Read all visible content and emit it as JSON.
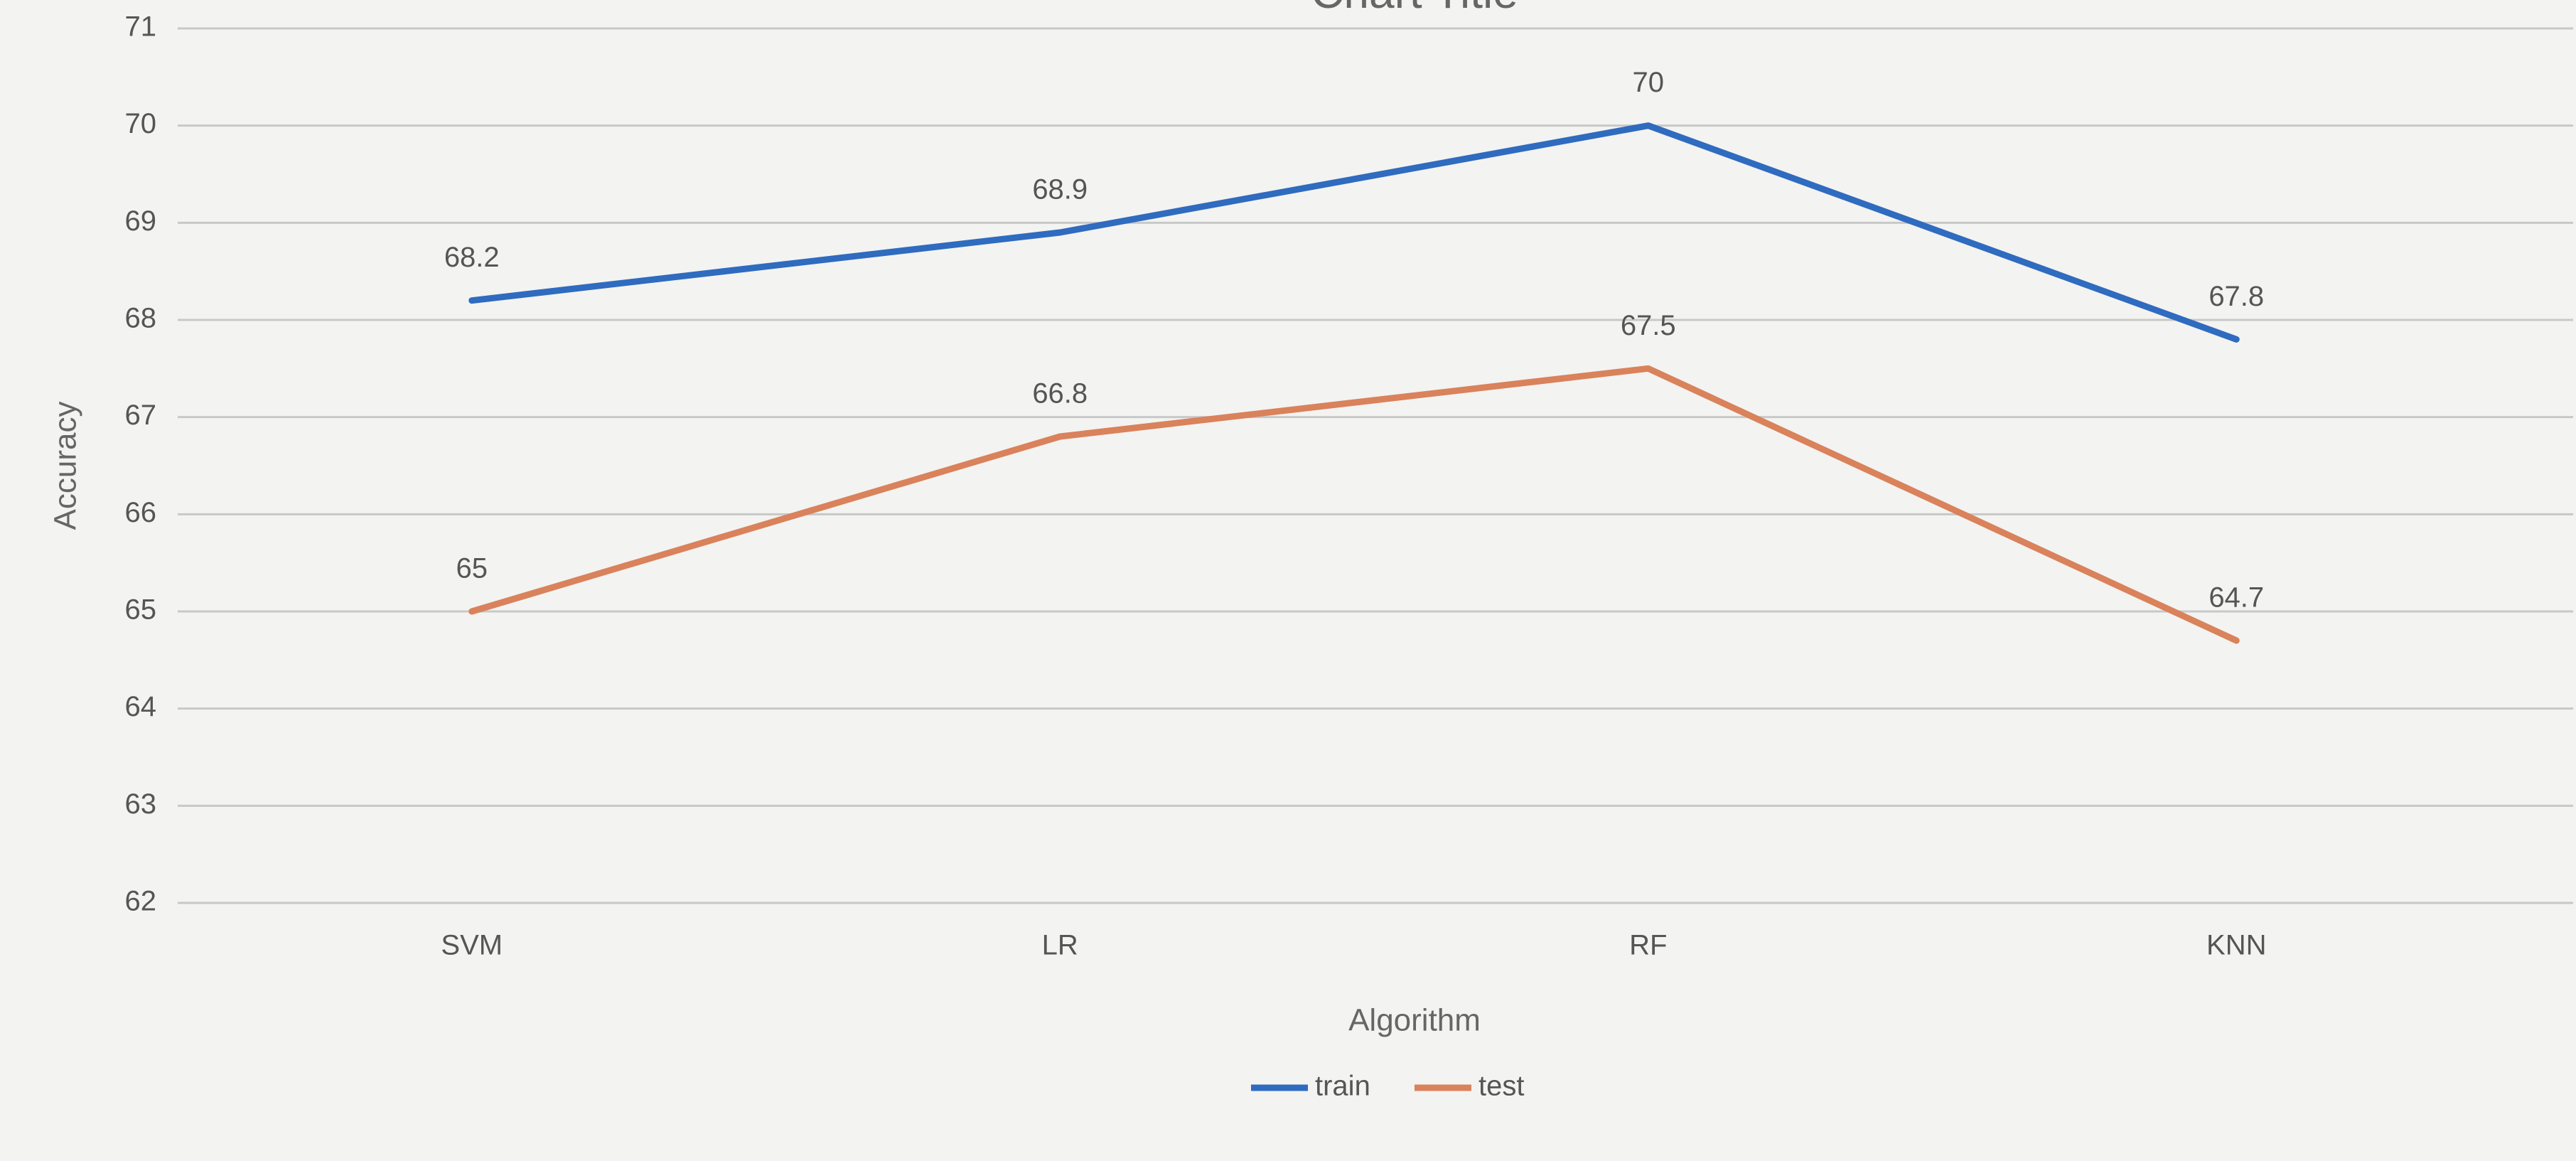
{
  "chart_data": {
    "type": "line",
    "title": "Chart Title",
    "x_label": "Algorithm",
    "y_label": "Accuracy",
    "categories": [
      "SVM",
      "LR",
      "RF",
      "KNN"
    ],
    "series": [
      {
        "name": "train",
        "color": "#2f6bbf",
        "values": [
          68.2,
          68.9,
          70,
          67.8
        ]
      },
      {
        "name": "test",
        "color": "#d9825b",
        "values": [
          65,
          66.8,
          67.5,
          64.7
        ]
      }
    ],
    "ylim": [
      62,
      71
    ],
    "yticks": [
      62,
      63,
      64,
      65,
      66,
      67,
      68,
      69,
      70,
      71
    ],
    "grid": true,
    "legend": "bottom"
  }
}
